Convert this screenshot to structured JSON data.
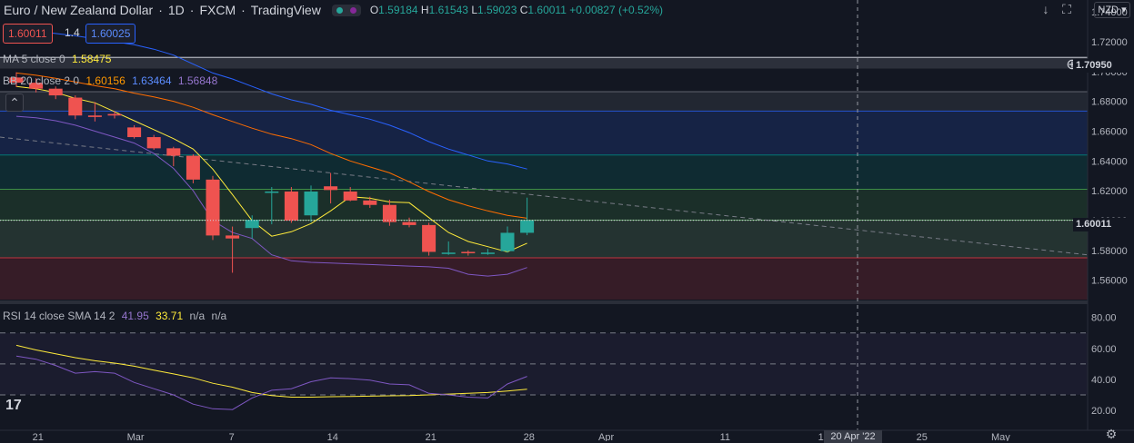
{
  "header": {
    "symbol_name": "Euro / New Zealand Dollar",
    "interval": "1D",
    "exchange": "FXCM",
    "source": "TradingView",
    "o_label": "O",
    "o_value": "1.59184",
    "h_label": "H",
    "h_value": "1.61543",
    "l_label": "L",
    "l_value": "1.59023",
    "c_label": "C",
    "c_value": "1.60011",
    "change": "+0.00827 (+0.52%)",
    "currency": "NZD"
  },
  "trade": {
    "sell": "1.60011",
    "spread": "1.4",
    "buy": "1.60025"
  },
  "indicators": {
    "ma_label": "MA 5 close 0",
    "ma_value": "1.58475",
    "bb_label": "BB 20 close 2 0",
    "bb_basis": "1.60156",
    "bb_upper": "1.63464",
    "bb_lower": "1.56848",
    "rsi_label": "RSI 14 close SMA 14 2",
    "rsi_value": "41.95",
    "rsi_sma": "33.71",
    "rsi_na1": "n/a",
    "rsi_na2": "n/a"
  },
  "price_axis": {
    "ticks": [
      "1.74000",
      "1.72000",
      "1.70000",
      "1.68000",
      "1.66000",
      "1.64000",
      "1.62000",
      "1.60000",
      "1.58000",
      "1.56000"
    ],
    "tick_values": [
      1.74,
      1.72,
      1.7,
      1.68,
      1.66,
      1.64,
      1.62,
      1.6,
      1.58,
      1.56
    ],
    "hline_label": "1.70950",
    "last_price_label": "1.60011"
  },
  "rsi_axis": {
    "ticks": [
      "80.00",
      "60.00",
      "40.00",
      "20.00"
    ],
    "tick_values": [
      80,
      60,
      40,
      20
    ]
  },
  "time_axis": {
    "labels": [
      "21",
      "Mar",
      "7",
      "14",
      "21",
      "28",
      "Apr",
      "11",
      "18",
      "25",
      "May"
    ],
    "crosshair_label": "20 Apr '22"
  },
  "colors": {
    "up": "#26a69a",
    "down": "#ef5350",
    "bg": "#131722",
    "bb_upper": "#2962ff",
    "bb_lower": "#7e57c2",
    "bb_basis": "#ff6d00",
    "ma": "#ffeb3b",
    "rsi": "#7e57c2"
  },
  "chart_data": {
    "type": "candlestick",
    "dates": [
      "Feb 21",
      "Feb 22",
      "Feb 23",
      "Feb 24",
      "Feb 25",
      "Feb 28",
      "Mar 1",
      "Mar 2",
      "Mar 3",
      "Mar 4",
      "Mar 7",
      "Mar 8",
      "Mar 9",
      "Mar 10",
      "Mar 11",
      "Mar 14",
      "Mar 15",
      "Mar 16",
      "Mar 17",
      "Mar 18",
      "Mar 21",
      "Mar 22",
      "Mar 23",
      "Mar 24",
      "Mar 25",
      "Mar 28",
      "Mar 29"
    ],
    "open": [
      1.696,
      1.6925,
      1.6885,
      1.6825,
      1.6705,
      1.6715,
      1.6625,
      1.656,
      1.6485,
      1.6435,
      1.6275,
      1.59,
      1.595,
      1.6195,
      1.6195,
      1.6035,
      1.623,
      1.6195,
      1.6135,
      1.6105,
      1.599,
      1.597,
      1.5785,
      1.579,
      1.5785,
      1.5795,
      1.5918
    ],
    "high": [
      1.6995,
      1.6955,
      1.69,
      1.684,
      1.6795,
      1.6735,
      1.664,
      1.6575,
      1.6495,
      1.6445,
      1.63,
      1.596,
      1.6035,
      1.6225,
      1.6225,
      1.6235,
      1.632,
      1.6225,
      1.616,
      1.614,
      1.602,
      1.5985,
      1.586,
      1.58,
      1.581,
      1.596,
      1.6154
    ],
    "low": [
      1.6895,
      1.686,
      1.6815,
      1.668,
      1.6665,
      1.6685,
      1.655,
      1.6475,
      1.6365,
      1.625,
      1.587,
      1.565,
      1.588,
      1.5975,
      1.5985,
      1.599,
      1.6115,
      1.613,
      1.6085,
      1.5965,
      1.5955,
      1.5765,
      1.577,
      1.5765,
      1.577,
      1.5785,
      1.5902
    ],
    "close": [
      1.6925,
      1.6885,
      1.684,
      1.6705,
      1.6695,
      1.6705,
      1.656,
      1.6485,
      1.6435,
      1.6275,
      1.59,
      1.588,
      1.6005,
      1.6195,
      1.6,
      1.6195,
      1.6205,
      1.6135,
      1.6105,
      1.599,
      1.597,
      1.579,
      1.5785,
      1.5785,
      1.5785,
      1.5918,
      1.6001
    ],
    "ma5": [
      1.69,
      1.6885,
      1.686,
      1.682,
      1.679,
      1.673,
      1.667,
      1.661,
      1.655,
      1.648,
      1.6345,
      1.6175,
      1.6,
      1.5895,
      1.5925,
      1.598,
      1.6065,
      1.616,
      1.615,
      1.6125,
      1.612,
      1.602,
      1.592,
      1.586,
      1.5825,
      1.579,
      1.5848
    ],
    "bb_upper": [
      1.729,
      1.727,
      1.7255,
      1.724,
      1.722,
      1.72,
      1.718,
      1.715,
      1.711,
      1.705,
      1.699,
      1.695,
      1.69,
      1.685,
      1.681,
      1.678,
      1.674,
      1.671,
      1.668,
      1.664,
      1.659,
      1.653,
      1.648,
      1.644,
      1.64,
      1.638,
      1.6346
    ],
    "bb_basis": [
      1.699,
      1.6975,
      1.6955,
      1.693,
      1.6905,
      1.6885,
      1.6855,
      1.683,
      1.68,
      1.676,
      1.671,
      1.6665,
      1.662,
      1.658,
      1.655,
      1.651,
      1.645,
      1.64,
      1.636,
      1.632,
      1.626,
      1.6195,
      1.614,
      1.61,
      1.6065,
      1.6035,
      1.6016
    ],
    "bb_lower": [
      1.67,
      1.669,
      1.667,
      1.664,
      1.66,
      1.656,
      1.652,
      1.645,
      1.635,
      1.62,
      1.6,
      1.592,
      1.588,
      1.577,
      1.573,
      1.572,
      1.5715,
      1.571,
      1.5705,
      1.57,
      1.5695,
      1.569,
      1.568,
      1.564,
      1.5628,
      1.564,
      1.5685
    ],
    "rsi": [
      55.0,
      53.0,
      49.0,
      44.0,
      45.0,
      44.0,
      38.0,
      34.0,
      30.0,
      24.0,
      21.0,
      20.5,
      28.0,
      33.0,
      34.0,
      38.5,
      41.0,
      40.5,
      39.5,
      37.0,
      36.5,
      31.0,
      30.0,
      28.5,
      28.0,
      37.0,
      41.95
    ],
    "rsi_sma": [
      62.0,
      59.0,
      56.5,
      54.0,
      52.0,
      50.5,
      48.5,
      46.0,
      43.5,
      41.0,
      37.5,
      35.0,
      31.5,
      29.5,
      28.5,
      28.5,
      28.8,
      29.0,
      29.2,
      29.4,
      29.5,
      30.0,
      30.5,
      31.0,
      31.5,
      32.5,
      33.71
    ],
    "hline": 1.7095,
    "zones": [
      {
        "from": 1.7095,
        "to": 1.702,
        "color": "#b2b5be"
      },
      {
        "from": 1.6865,
        "to": 1.6735,
        "color": "#787b86"
      },
      {
        "from": 1.6735,
        "to": 1.644,
        "color": "#2962ff"
      },
      {
        "from": 1.644,
        "to": 1.621,
        "color": "#009688"
      },
      {
        "from": 1.621,
        "to": 1.6003,
        "color": "#4caf50"
      },
      {
        "from": 1.6003,
        "to": 1.575,
        "color": "#81c784"
      },
      {
        "from": 1.575,
        "to": 1.547,
        "color": "#f23645"
      }
    ],
    "trendline": {
      "from_date": "Feb 21",
      "from_price": 1.656,
      "to_date": "May 6",
      "to_price": 1.577
    },
    "ylim": [
      1.547,
      1.748
    ],
    "rsi_levels": [
      70,
      50,
      30
    ],
    "rsi_ylim": [
      13,
      88
    ]
  }
}
